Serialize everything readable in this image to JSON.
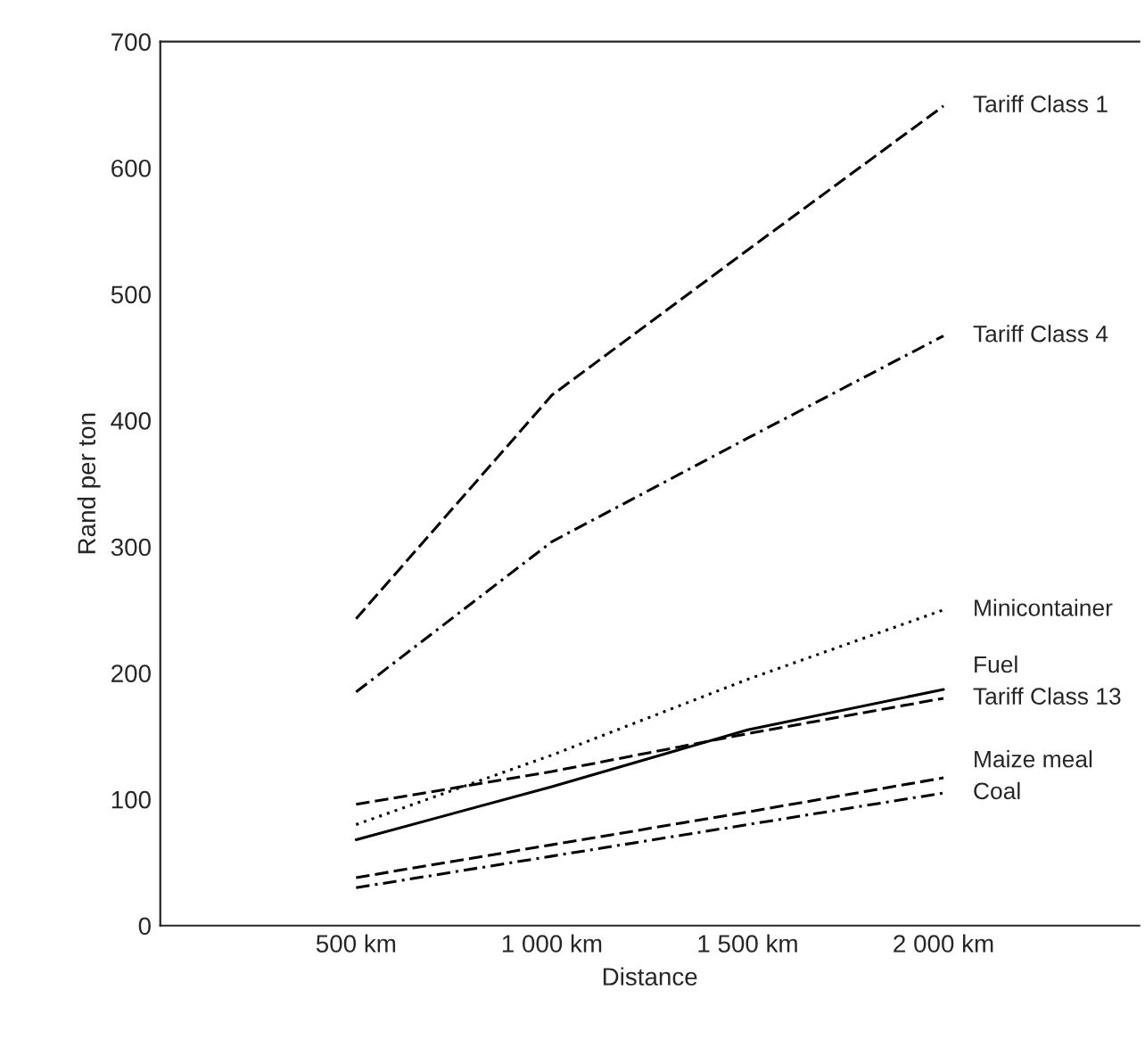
{
  "chart_data": {
    "type": "line",
    "xlabel": "Distance",
    "ylabel": "Rand per ton",
    "x": [
      500,
      1000,
      1500,
      2000
    ],
    "xlim": [
      0,
      2500
    ],
    "xticks": [
      {
        "value": 500,
        "label": "500 km"
      },
      {
        "value": 1000,
        "label": "1 000 km"
      },
      {
        "value": 1500,
        "label": "1 500 km"
      },
      {
        "value": 2000,
        "label": "2 000 km"
      }
    ],
    "ylim": [
      0,
      700
    ],
    "yticks": [
      0,
      100,
      200,
      300,
      400,
      500,
      600,
      700
    ],
    "grid": false,
    "legend": false,
    "series": [
      {
        "name": "Tariff Class 1",
        "color": "#000000",
        "line_style": "dashed",
        "values": [
          243,
          420,
          535,
          649
        ]
      },
      {
        "name": "Tariff Class 4",
        "color": "#000000",
        "line_style": "dashdot",
        "values": [
          185,
          304,
          386,
          467
        ]
      },
      {
        "name": "Minicontainer",
        "color": "#000000",
        "line_style": "dotted",
        "values": [
          80,
          135,
          195,
          250
        ]
      },
      {
        "name": "Fuel",
        "color": "#000000",
        "line_style": "solid",
        "values": [
          68,
          110,
          155,
          187
        ]
      },
      {
        "name": "Tariff Class 13",
        "color": "#000000",
        "line_style": "dashed",
        "values": [
          96,
          122,
          152,
          180
        ]
      },
      {
        "name": "Maize meal",
        "color": "#000000",
        "line_style": "dashed",
        "values": [
          38,
          64,
          90,
          117
        ]
      },
      {
        "name": "Coal",
        "color": "#000000",
        "line_style": "dashdot",
        "values": [
          30,
          55,
          80,
          105
        ]
      }
    ]
  }
}
